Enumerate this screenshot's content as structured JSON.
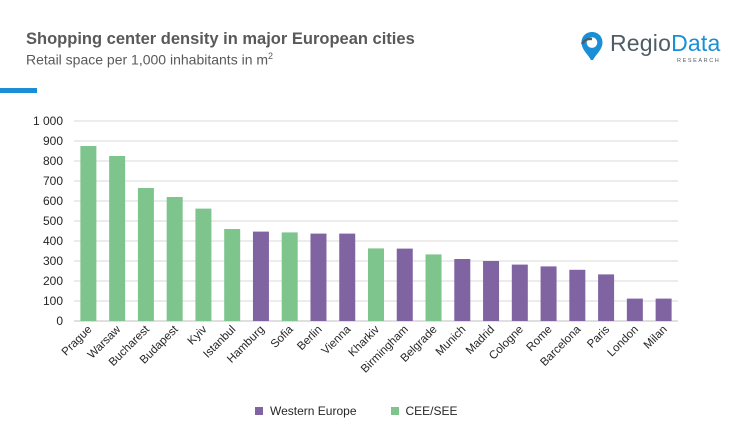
{
  "header": {
    "title": "Shopping center density in major European cities",
    "subtitle": "Retail space per 1,000 inhabitants in m",
    "subtitle_sup": "2"
  },
  "logo": {
    "word_part1": "Regio",
    "word_part2": "Data",
    "tagline": "RESEARCH",
    "icon": "map-pin-icon"
  },
  "colors": {
    "western": "#8064a2",
    "cee": "#7ec48d",
    "gridline": "#d9d9d9",
    "axis": "#bfbfbf",
    "text": "#262626",
    "accent": "#1a8fd6"
  },
  "chart_data": {
    "type": "bar",
    "title": "Shopping center density in major European cities",
    "subtitle": "Retail space per 1,000 inhabitants in m2",
    "xlabel": "",
    "ylabel": "",
    "ylim": [
      0,
      1000
    ],
    "yticks": [
      0,
      100,
      200,
      300,
      400,
      500,
      600,
      700,
      800,
      900,
      1000
    ],
    "ytick_labels": [
      "0",
      "100",
      "200",
      "300",
      "400",
      "500",
      "600",
      "700",
      "800",
      "900",
      "1 000"
    ],
    "grid": true,
    "legend_position": "bottom",
    "categories": [
      "Prague",
      "Warsaw",
      "Bucharest",
      "Budapest",
      "Kyiv",
      "Istanbul",
      "Hamburg",
      "Sofia",
      "Berlin",
      "Vienna",
      "Kharkiv",
      "Birmingham",
      "Belgrade",
      "Munich",
      "Madrid",
      "Cologne",
      "Rome",
      "Barcelona",
      "Paris",
      "London",
      "Milan"
    ],
    "values": [
      875,
      825,
      665,
      620,
      562,
      460,
      447,
      443,
      437,
      437,
      363,
      362,
      333,
      310,
      300,
      282,
      273,
      256,
      233,
      112,
      112
    ],
    "groups": [
      "CEE/SEE",
      "CEE/SEE",
      "CEE/SEE",
      "CEE/SEE",
      "CEE/SEE",
      "CEE/SEE",
      "Western Europe",
      "CEE/SEE",
      "Western Europe",
      "Western Europe",
      "CEE/SEE",
      "Western Europe",
      "CEE/SEE",
      "Western Europe",
      "Western Europe",
      "Western Europe",
      "Western Europe",
      "Western Europe",
      "Western Europe",
      "Western Europe",
      "Western Europe"
    ],
    "legend": [
      {
        "name": "Western Europe",
        "color": "#8064a2"
      },
      {
        "name": "CEE/SEE",
        "color": "#7ec48d"
      }
    ]
  }
}
